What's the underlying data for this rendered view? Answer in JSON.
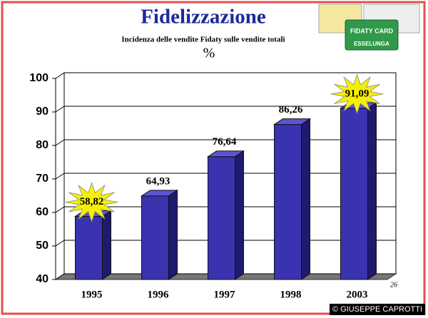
{
  "chart_data": {
    "type": "bar3d",
    "title": "Fidelizzazione",
    "subtitle": "Incidenza delle vendite Fidaty sulle vendite totali",
    "unit": "%",
    "categories": [
      "1995",
      "1996",
      "1997",
      "1998",
      "2003"
    ],
    "values": [
      58.82,
      64.93,
      76.64,
      86.26,
      91.09
    ],
    "value_labels": [
      "58,82",
      "64,93",
      "76,64",
      "86,26",
      "91,09"
    ],
    "color": "#3a33b0",
    "highlight": [
      0,
      4
    ],
    "ylim": [
      40,
      100
    ],
    "yticks": [
      40,
      50,
      60,
      70,
      80,
      90,
      100
    ],
    "grid": true,
    "page_number": "26",
    "logo_texts": [
      "FIDATY CARD",
      "ESSELUNGA"
    ],
    "credit": "© GIUSEPPE CAPROTTI"
  }
}
